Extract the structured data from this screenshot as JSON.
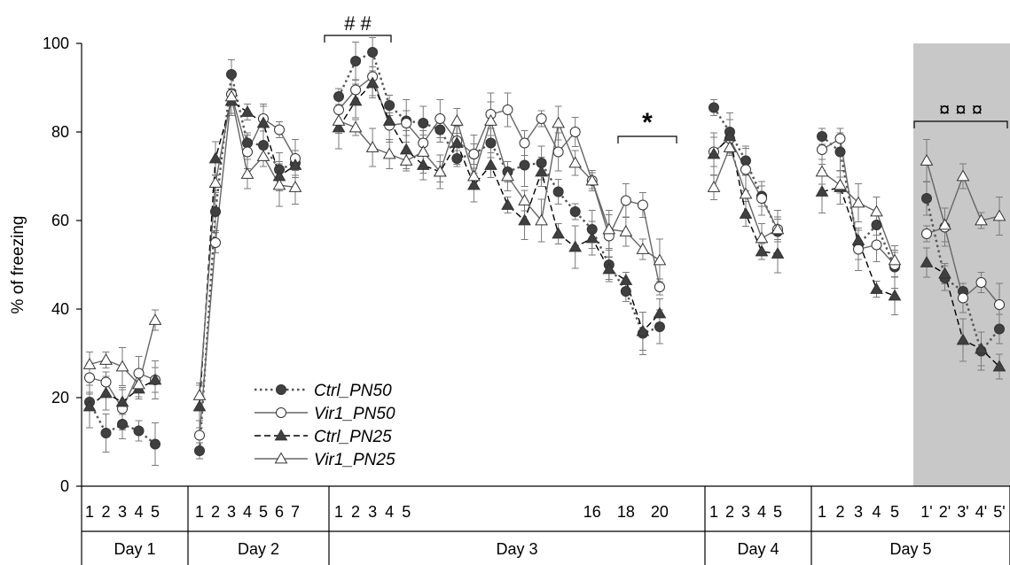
{
  "chart_data": {
    "type": "line",
    "ylabel": "% of freezing",
    "ylim": [
      0,
      100
    ],
    "yticks": [
      0,
      20,
      40,
      60,
      80,
      100
    ],
    "days": [
      {
        "label": "Day 1",
        "sessions": [
          "1",
          "2",
          "3",
          "4",
          "5"
        ]
      },
      {
        "label": "Day 2",
        "sessions": [
          "1",
          "2",
          "3",
          "4",
          "5",
          "6",
          "7"
        ]
      },
      {
        "label": "Day 3",
        "sessions": [
          "1",
          "2",
          "3",
          "4",
          "5",
          "6",
          "7",
          "8",
          "9",
          "10",
          "11",
          "12",
          "13",
          "14",
          "15",
          "16",
          "17",
          "18",
          "19",
          "20"
        ],
        "tick_labels": [
          "1",
          "2",
          "3",
          "4",
          "5",
          "",
          "",
          "",
          "",
          "",
          "",
          "",
          "",
          "",
          "",
          "16",
          "",
          "18",
          "",
          "20"
        ]
      },
      {
        "label": "Day 4",
        "sessions": [
          "1",
          "2",
          "3",
          "4",
          "5"
        ]
      },
      {
        "label": "Day 5",
        "sessions": [
          "1",
          "2",
          "3",
          "4",
          "5",
          "1'",
          "2'",
          "3'",
          "4'",
          "5'"
        ]
      }
    ],
    "shaded_region": {
      "day": "Day 5",
      "from": "1'",
      "to": "5'",
      "color": "#c8c8c8"
    },
    "series": [
      {
        "name": "Ctrl_PN50",
        "line": "dotted",
        "marker": "circle",
        "fill": "#404040",
        "values": [
          [
            19,
            12,
            14,
            12.5,
            9.5
          ],
          [
            8,
            62,
            93,
            77.5,
            77,
            71.5,
            73
          ],
          [
            88,
            96,
            98,
            86,
            82.5,
            82,
            80.5,
            74,
            75,
            77.5,
            71,
            72.5,
            73,
            66.5,
            62,
            58,
            50,
            44,
            34.5,
            36
          ],
          [
            85.5,
            80,
            73.5,
            65.5,
            57.5
          ],
          [
            79,
            75.5,
            54.5,
            59,
            49.5,
            65,
            47,
            44,
            30.5,
            35.5
          ]
        ]
      },
      {
        "name": "Vir1_PN50",
        "line": "solid",
        "marker": "circle",
        "fill": "#ffffff",
        "values": [
          [
            24.5,
            23.5,
            17.5,
            25.5,
            24
          ],
          [
            11.5,
            55,
            88.5,
            75.5,
            83,
            80.5,
            74
          ],
          [
            85,
            89.5,
            92.5,
            81.5,
            82,
            77.5,
            83,
            78,
            75,
            84,
            85,
            77.5,
            83,
            75.5,
            80,
            69,
            56.5,
            64.5,
            63.5,
            45
          ],
          [
            75.5,
            78.5,
            71.5,
            65,
            58
          ],
          [
            76,
            78.5,
            53.5,
            54.5,
            50,
            57,
            58.5,
            42.5,
            46,
            41
          ]
        ]
      },
      {
        "name": "Ctrl_PN25",
        "line": "dashed",
        "marker": "triangle",
        "fill": "#404040",
        "values": [
          [
            18,
            21,
            19,
            22,
            24
          ],
          [
            18,
            74,
            87,
            84.5,
            82,
            70,
            72.5
          ],
          [
            81,
            87,
            91,
            82.5,
            76,
            72.5,
            71,
            77.5,
            68,
            72.5,
            63.5,
            60,
            71,
            57,
            54,
            56,
            49,
            46.5,
            35,
            39
          ],
          [
            75,
            79,
            61.5,
            53,
            52.5
          ],
          [
            66.5,
            67.5,
            55.5,
            44.5,
            43,
            50.5,
            48,
            33,
            31,
            27
          ]
        ]
      },
      {
        "name": "Vir1_PN25",
        "line": "solid",
        "marker": "triangle",
        "fill": "#ffffff",
        "values": [
          [
            27.5,
            28.5,
            27,
            23,
            37.5
          ],
          [
            20.5,
            68.5,
            88,
            70.5,
            74.5,
            68,
            67.5
          ],
          [
            82.5,
            81,
            76.5,
            75,
            73.5,
            75.5,
            71,
            82.5,
            70,
            82.5,
            70,
            64.5,
            60,
            82,
            73,
            69,
            58,
            57.5,
            53.5,
            51
          ],
          [
            67.5,
            76.5,
            66,
            56,
            58
          ],
          [
            71,
            68,
            64,
            62,
            51,
            73.5,
            59,
            70,
            60,
            61
          ]
        ]
      }
    ],
    "annotations": [
      {
        "text": "# #",
        "day": "Day 3",
        "from": "1",
        "to": "4"
      },
      {
        "text": "*",
        "day": "Day 3",
        "from": "16",
        "to": "20"
      },
      {
        "text": "¤ ¤ ¤",
        "day": "Day 5",
        "from": "1'",
        "to": "5'"
      }
    ],
    "legend": {
      "position": "left-middle"
    }
  }
}
